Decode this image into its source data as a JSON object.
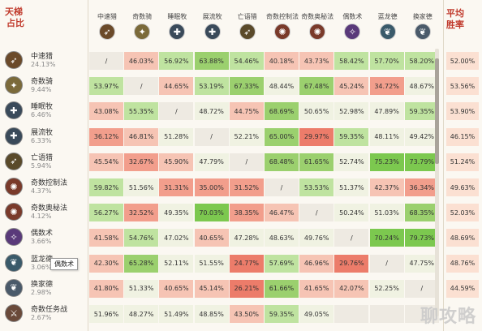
{
  "corner": {
    "line1": "天梯",
    "line2": "占比"
  },
  "avg_header": {
    "line1": "平均",
    "line2": "胜率"
  },
  "columns": [
    {
      "label": "中速猎",
      "icon": "hunter-icon",
      "color": "#6b4a2a"
    },
    {
      "label": "奇数骑",
      "icon": "paladin-icon",
      "color": "#7b6a3a"
    },
    {
      "label": "睡眠牧",
      "icon": "priest-icon",
      "color": "#3a4a5a"
    },
    {
      "label": "展流牧",
      "icon": "priest-icon",
      "color": "#3a4a5a"
    },
    {
      "label": "亡语猎",
      "icon": "hunter-icon",
      "color": "#5a4a2a"
    },
    {
      "label": "奇数控制法",
      "icon": "mage-icon",
      "color": "#7a3a2a"
    },
    {
      "label": "奇数奥秘法",
      "icon": "mage-icon",
      "color": "#7a3a2a"
    },
    {
      "label": "偶数术",
      "icon": "warlock-icon",
      "color": "#5a3a7a"
    },
    {
      "label": "蓝龙德",
      "icon": "druid-icon",
      "color": "#3a5a6a"
    },
    {
      "label": "换家德",
      "icon": "druid-icon",
      "color": "#4a5a6a"
    }
  ],
  "rows": [
    {
      "name": "中速猎",
      "pct": "24.13%",
      "icon": "hunter-icon",
      "color": "#6b4a2a",
      "cells": [
        "/",
        "46.03%",
        "56.92%",
        "63.88%",
        "54.46%",
        "40.18%",
        "43.73%",
        "58.42%",
        "57.70%",
        "58.20%"
      ],
      "avg": "52.00%"
    },
    {
      "name": "奇数骑",
      "pct": "9.44%",
      "icon": "paladin-icon",
      "color": "#7b6a3a",
      "cells": [
        "53.97%",
        "/",
        "44.65%",
        "53.19%",
        "67.33%",
        "48.44%",
        "67.48%",
        "45.24%",
        "34.72%",
        "48.67%"
      ],
      "avg": "53.56%"
    },
    {
      "name": "睡眠牧",
      "pct": "6.46%",
      "icon": "priest-icon",
      "color": "#3a4a5a",
      "cells": [
        "43.08%",
        "55.35%",
        "/",
        "48.72%",
        "44.75%",
        "68.69%",
        "50.65%",
        "52.98%",
        "47.89%",
        "59.35%"
      ],
      "avg": "53.90%"
    },
    {
      "name": "展流牧",
      "pct": "6.33%",
      "icon": "priest-icon",
      "color": "#3a4a5a",
      "cells": [
        "36.12%",
        "46.81%",
        "51.28%",
        "/",
        "52.21%",
        "65.00%",
        "29.97%",
        "59.35%",
        "48.11%",
        "49.42%"
      ],
      "avg": "46.15%"
    },
    {
      "name": "亡语猎",
      "pct": "5.94%",
      "icon": "hunter-icon",
      "color": "#5a4a2a",
      "cells": [
        "45.54%",
        "32.67%",
        "45.90%",
        "47.79%",
        "/",
        "68.48%",
        "61.65%",
        "52.74%",
        "75.23%",
        "73.79%"
      ],
      "avg": "51.24%"
    },
    {
      "name": "奇数控制法",
      "pct": "4.37%",
      "icon": "mage-icon",
      "color": "#7a3a2a",
      "cells": [
        "59.82%",
        "51.56%",
        "31.31%",
        "35.00%",
        "31.52%",
        "/",
        "53.53%",
        "51.37%",
        "42.37%",
        "36.34%"
      ],
      "avg": "49.63%"
    },
    {
      "name": "奇数奥秘法",
      "pct": "4.12%",
      "icon": "mage-icon",
      "color": "#7a3a2a",
      "cells": [
        "56.27%",
        "32.52%",
        "49.35%",
        "70.03%",
        "38.35%",
        "46.47%",
        "/",
        "50.24%",
        "51.03%",
        "68.35%"
      ],
      "avg": "52.03%"
    },
    {
      "name": "偶数术",
      "pct": "3.66%",
      "icon": "warlock-icon",
      "color": "#5a3a7a",
      "cells": [
        "41.58%",
        "54.76%",
        "47.02%",
        "40.65%",
        "47.28%",
        "48.63%",
        "49.76%",
        "/",
        "70.24%",
        "79.73%"
      ],
      "avg": "48.69%"
    },
    {
      "name": "蓝龙德",
      "pct": "3.06%",
      "icon": "druid-icon",
      "color": "#3a5a6a",
      "cells": [
        "42.30%",
        "65.28%",
        "52.11%",
        "51.55%",
        "24.77%",
        "57.69%",
        "46.96%",
        "29.76%",
        "/",
        "47.75%"
      ],
      "avg": "48.76%"
    },
    {
      "name": "换家德",
      "pct": "2.98%",
      "icon": "druid-icon",
      "color": "#4a5a6a",
      "cells": [
        "41.80%",
        "51.33%",
        "40.65%",
        "45.14%",
        "26.21%",
        "61.66%",
        "41.65%",
        "42.07%",
        "52.25%",
        "/"
      ],
      "avg": "44.59%"
    },
    {
      "name": "奇数任务战",
      "pct": "2.67%",
      "icon": "warrior-icon",
      "color": "#6a4a3a",
      "cells": [
        "51.96%",
        "48.27%",
        "51.49%",
        "48.85%",
        "43.50%",
        "59.35%",
        "49.05%",
        "",
        "",
        ""
      ],
      "avg": ""
    }
  ],
  "tooltip": "偶数术",
  "watermark": "聊攻略"
}
